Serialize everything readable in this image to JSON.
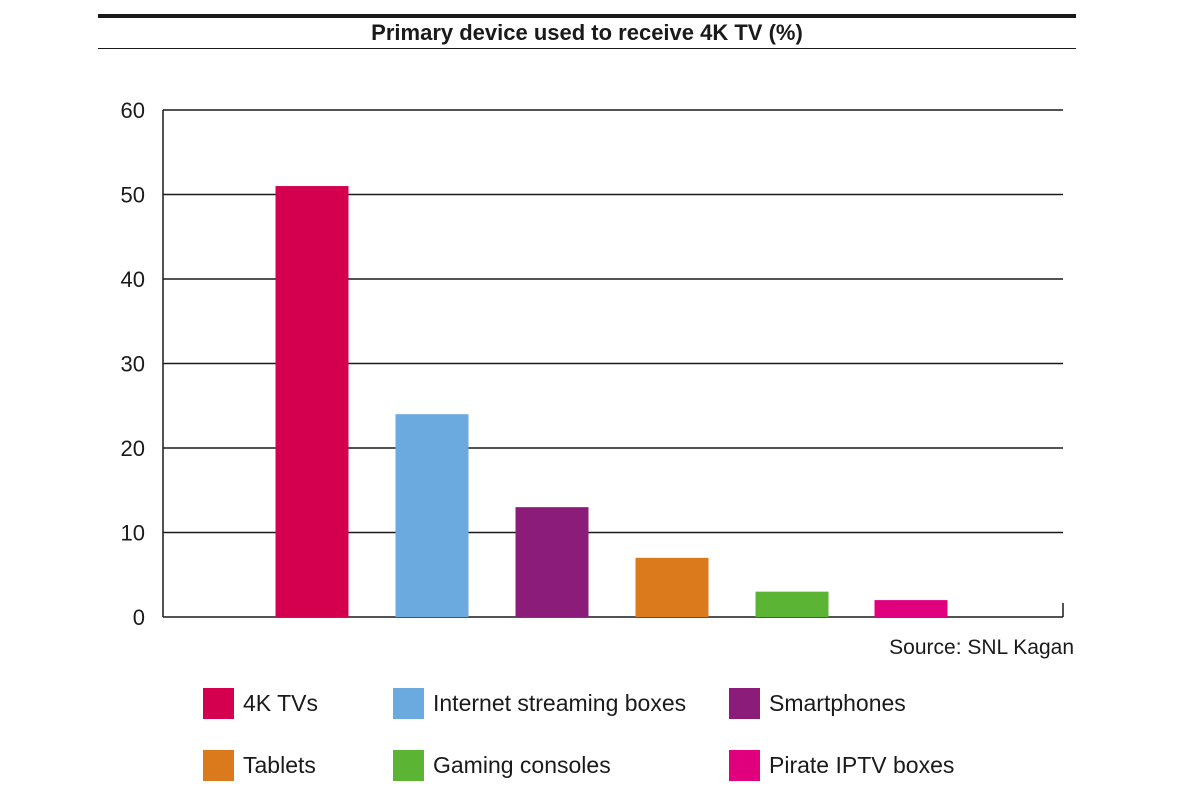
{
  "chart_data": {
    "type": "bar",
    "title": "Primary device used to receive 4K TV (%)",
    "categories": [
      "4K TVs",
      "Internet streaming boxes",
      "Smartphones",
      "Tablets",
      "Gaming consoles",
      "Pirate IPTV boxes"
    ],
    "values": [
      51,
      24,
      13,
      7,
      3,
      2
    ],
    "colors": [
      "#d4004f",
      "#6aaade",
      "#8b1c7a",
      "#da7a1d",
      "#5cb435",
      "#e0007e"
    ],
    "ylim": [
      0,
      60
    ],
    "yticks": [
      0,
      10,
      20,
      30,
      40,
      50,
      60
    ],
    "grid": true,
    "xlabel": "",
    "ylabel": "",
    "legend_position": "bottom",
    "source": "Source: SNL Kagan"
  }
}
